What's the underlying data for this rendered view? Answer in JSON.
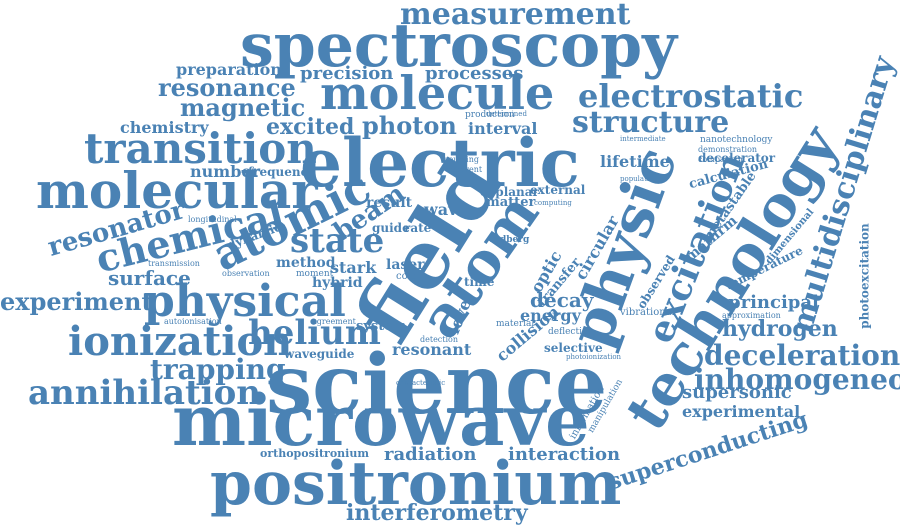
{
  "colors": {
    "word": "#4a82b4",
    "background": "#ffffff"
  },
  "words": {
    "measurement": "measurement",
    "spectroscopy": "spectroscopy",
    "molecule": "molecule",
    "electrostatic": "electrostatic",
    "preparation": "preparation",
    "precision": "precision",
    "processes": "processes",
    "resonance": "resonance",
    "magnetic": "magnetic",
    "chemistry": "chemistry",
    "excited": "excited",
    "photon": "photon",
    "interval": "interval",
    "production": "production",
    "structure": "structure",
    "multidisciplinary": "multidisciplinary",
    "transition": "transition",
    "electric": "electric",
    "molecular": "molecular",
    "number": "number",
    "frequency": "frequency",
    "nanotechnology": "nanotechnology",
    "intermediate": "intermediate",
    "demonstration": "demonstration",
    "comparison": "comparison",
    "decelerator": "decelerator",
    "population": "population",
    "lifetime": "lifetime",
    "calculation": "calculation",
    "technology": "technology",
    "excitation": "excitation",
    "metastable": "metastable",
    "dimensional": "dimensional",
    "resonator": "resonator",
    "chemical": "chemical",
    "atomic": "atomic",
    "beam": "beam",
    "result": "result",
    "wave": "wave",
    "matter": "matter",
    "external": "external",
    "coplanar": "coplanar",
    "field": "field",
    "atom": "atom",
    "physic": "physic",
    "state": "state",
    "surface": "surface",
    "dynamic": "dynamic",
    "guide": "guide",
    "rate": "rate",
    "rydberg": "rydberg",
    "optic": "optic",
    "circular": "circular",
    "mathrm": "mathrm",
    "temperature": "temperature",
    "photoexcitation": "photoexcitation",
    "experiment": "experiment",
    "physical": "physical",
    "method": "method",
    "stark": "stark",
    "laser": "laser",
    "time": "time",
    "transfer": "transfer",
    "decay": "decay",
    "principal": "principal",
    "observed": "observed",
    "hybrid": "hybrid",
    "hydrogen": "hydrogen",
    "ionization": "ionization",
    "helium": "helium",
    "energy": "energy",
    "system": "system",
    "level": "level",
    "collision": "collision",
    "vibrational": "vibrational",
    "approximation": "approximation",
    "waveguide": "waveguide",
    "resonant": "resonant",
    "selective": "selective",
    "deflection": "deflection",
    "deceleration": "deceleration",
    "trapping": "trapping",
    "inhomogeneous": "inhomogeneous",
    "supersonic": "supersonic",
    "annihilation": "annihilation",
    "science": "science",
    "experimental": "experimental",
    "microwave": "microwave",
    "information": "information",
    "manipulation": "manipulation",
    "superconducting": "superconducting",
    "orthopositronium": "orthopositronium",
    "radiation": "radiation",
    "interaction": "interaction",
    "positronium": "positronium",
    "interferometry": "interferometry",
    "autoionisation": "autoionisation",
    "agreement": "agreement",
    "detection": "detection",
    "material": "material",
    "longitudinal": "longitudinal",
    "transmission": "transmission",
    "observation": "observation",
    "cold": "cold",
    "moment": "moment",
    "coupling": "coupling",
    "coherent": "coherent",
    "determined": "determined",
    "characteristic": "characteristic",
    "photoionization": "photoionization",
    "computing": "computing"
  }
}
